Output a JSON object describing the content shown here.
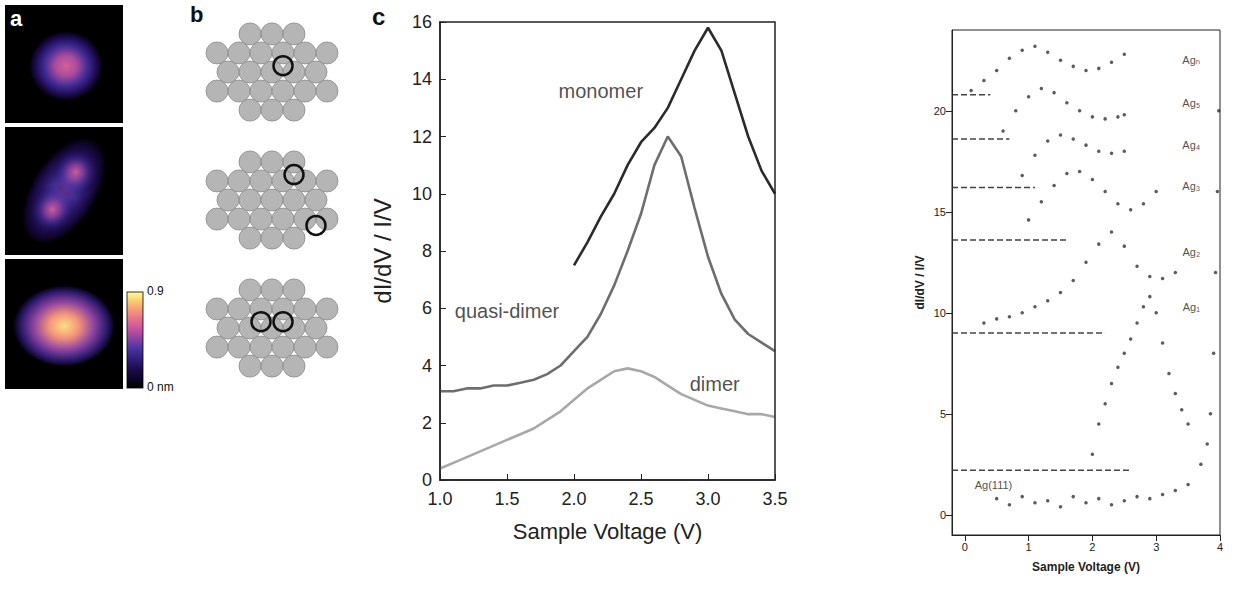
{
  "panel_a": {
    "label": "a",
    "images": [
      {
        "peak_height": 0.6
      },
      {
        "peak_height": 0.58
      },
      {
        "peak_height": 0.85
      }
    ],
    "colorbar": {
      "range": [
        0,
        0.9
      ],
      "ticks": [
        {
          "value": 0.9,
          "label": "0.9"
        },
        {
          "value": 0,
          "label": "0 nm"
        }
      ]
    }
  },
  "panel_b": {
    "label": "b"
  },
  "chart_data": [
    {
      "type": "line",
      "panel_label": "c",
      "x_label": "Sample Voltage (V)",
      "y_label": "dI/dV / I/V",
      "x": [
        1.0,
        1.1,
        1.2,
        1.3,
        1.4,
        1.5,
        1.6,
        1.7,
        1.8,
        1.9,
        2.0,
        2.1,
        2.2,
        2.3,
        2.4,
        2.5,
        2.6,
        2.7,
        2.8,
        2.9,
        3.0,
        3.1,
        3.2,
        3.3,
        3.4,
        3.5
      ],
      "series": [
        {
          "color": "#2b2b2b",
          "line_style": "solid",
          "values": [
            null,
            null,
            null,
            null,
            null,
            null,
            null,
            null,
            null,
            null,
            7.5,
            8.3,
            9.2,
            10.0,
            11.0,
            11.8,
            12.3,
            13.0,
            14.0,
            15.0,
            15.8,
            15.0,
            13.5,
            12.0,
            10.8,
            10.0
          ]
        },
        {
          "color": "#6e6e6e",
          "line_style": "solid",
          "values": [
            3.1,
            3.1,
            3.2,
            3.2,
            3.3,
            3.3,
            3.4,
            3.5,
            3.7,
            4.0,
            4.5,
            5.0,
            5.8,
            6.8,
            8.0,
            9.3,
            11.0,
            12.0,
            11.3,
            9.5,
            7.8,
            6.5,
            5.6,
            5.1,
            4.8,
            4.5
          ]
        },
        {
          "color": "#a8a8a8",
          "line_style": "solid",
          "values": [
            0.4,
            0.6,
            0.8,
            1.0,
            1.2,
            1.4,
            1.6,
            1.8,
            2.1,
            2.4,
            2.8,
            3.2,
            3.5,
            3.8,
            3.9,
            3.8,
            3.6,
            3.3,
            3.0,
            2.8,
            2.6,
            2.5,
            2.4,
            2.3,
            2.3,
            2.2
          ]
        }
      ],
      "annotations": [
        {
          "text": "monomer",
          "x": 2.2,
          "y": 13.6
        },
        {
          "text": "quasi-dimer",
          "x": 1.5,
          "y": 5.9
        },
        {
          "text": "dimer",
          "x": 3.05,
          "y": 3.35
        }
      ],
      "xlim": [
        1.0,
        3.5
      ],
      "xticks": [
        {
          "value": 1.0,
          "label": "1.0"
        },
        {
          "value": 1.5,
          "label": "1.5"
        },
        {
          "value": 2.0,
          "label": "2.0"
        },
        {
          "value": 2.5,
          "label": "2.5"
        },
        {
          "value": 3.0,
          "label": "3.0"
        },
        {
          "value": 3.5,
          "label": "3.5"
        }
      ],
      "ylim": [
        0,
        16
      ],
      "yticks": [
        0,
        2,
        4,
        6,
        8,
        10,
        12,
        14,
        16
      ],
      "grid": false
    },
    {
      "type": "scatter",
      "x_label": "Sample Voltage (V)",
      "y_label": "dI/dV / I/V",
      "series": [
        {
          "color": "#333333",
          "marker": "circle",
          "x": [
            0.5,
            0.7,
            0.9,
            1.1,
            1.3,
            1.5,
            1.7,
            1.9,
            2.1,
            2.3,
            2.5,
            2.7,
            2.9,
            3.1,
            3.3,
            3.5,
            3.7,
            3.8,
            3.85,
            3.9,
            3.93,
            3.96,
            3.98
          ],
          "values": [
            0.8,
            0.5,
            0.9,
            0.6,
            0.7,
            0.4,
            0.9,
            0.6,
            0.8,
            0.5,
            0.7,
            0.9,
            0.8,
            1.0,
            1.2,
            1.5,
            2.5,
            3.5,
            5.0,
            8.0,
            12.0,
            16.0,
            20.0
          ]
        },
        {
          "color": "#333333",
          "marker": "circle",
          "x": [
            2.0,
            2.1,
            2.2,
            2.3,
            2.4,
            2.5,
            2.6,
            2.7,
            2.8,
            2.9,
            3.0,
            3.1,
            3.2,
            3.3,
            3.4,
            3.5
          ],
          "values": [
            3.0,
            4.5,
            5.5,
            6.5,
            7.3,
            8.0,
            8.7,
            9.5,
            10.3,
            10.8,
            10.0,
            8.5,
            7.0,
            6.0,
            5.2,
            4.5
          ]
        },
        {
          "color": "#333333",
          "marker": "circle",
          "x": [
            0.3,
            0.5,
            0.7,
            0.9,
            1.1,
            1.3,
            1.5,
            1.7,
            1.9,
            2.1,
            2.3,
            2.5,
            2.7,
            2.9,
            3.1,
            3.3
          ],
          "values": [
            9.5,
            9.7,
            9.8,
            10.0,
            10.3,
            10.6,
            11.0,
            11.6,
            12.5,
            13.4,
            14.0,
            13.3,
            12.3,
            11.8,
            11.7,
            12.0
          ]
        },
        {
          "color": "#333333",
          "marker": "circle",
          "x": [
            1.0,
            1.2,
            1.4,
            1.6,
            1.8,
            2.0,
            2.2,
            2.4,
            2.6,
            2.8,
            3.0
          ],
          "values": [
            14.6,
            15.5,
            16.3,
            16.9,
            17.0,
            16.6,
            16.0,
            15.4,
            15.1,
            15.4,
            16.0
          ]
        },
        {
          "color": "#333333",
          "marker": "circle",
          "x": [
            0.9,
            1.1,
            1.3,
            1.5,
            1.7,
            1.9,
            2.1,
            2.3,
            2.5
          ],
          "values": [
            16.8,
            17.8,
            18.5,
            18.8,
            18.6,
            18.3,
            18.0,
            17.9,
            18.0
          ]
        },
        {
          "color": "#333333",
          "marker": "circle",
          "x": [
            0.6,
            0.8,
            1.0,
            1.2,
            1.4,
            1.6,
            1.8,
            2.0,
            2.2,
            2.4,
            2.5
          ],
          "values": [
            19.0,
            20.0,
            20.7,
            21.1,
            20.9,
            20.4,
            20.0,
            19.7,
            19.6,
            19.7,
            19.8
          ]
        },
        {
          "color": "#333333",
          "marker": "circle",
          "x": [
            0.1,
            0.3,
            0.5,
            0.7,
            0.9,
            1.1,
            1.3,
            1.5,
            1.7,
            1.9,
            2.1,
            2.3,
            2.5
          ],
          "values": [
            21.0,
            21.5,
            22.0,
            22.6,
            23.0,
            23.2,
            22.9,
            22.5,
            22.2,
            22.0,
            22.1,
            22.4,
            22.8
          ]
        }
      ],
      "reference_lines": [
        {
          "y": 2.2,
          "x": [
            -0.2,
            2.6
          ],
          "line_style": "dashed"
        },
        {
          "y": 9.0,
          "x": [
            -0.2,
            2.2
          ],
          "line_style": "dashed"
        },
        {
          "y": 13.6,
          "x": [
            -0.2,
            1.6
          ],
          "line_style": "dashed"
        },
        {
          "y": 16.2,
          "x": [
            -0.2,
            1.1
          ],
          "line_style": "dashed"
        },
        {
          "y": 18.6,
          "x": [
            -0.2,
            0.7
          ],
          "line_style": "dashed"
        },
        {
          "y": 20.8,
          "x": [
            -0.2,
            0.4
          ],
          "line_style": "dashed"
        }
      ],
      "annotations": [
        {
          "text": "Ag(111)",
          "x": 0.45,
          "y": 1.5
        },
        {
          "text": "Ag₁",
          "x": 3.55,
          "y": 10.3
        },
        {
          "text": "Ag₂",
          "x": 3.55,
          "y": 13.0
        },
        {
          "text": "Ag₃",
          "x": 3.55,
          "y": 16.3
        },
        {
          "text": "Ag₄",
          "x": 3.55,
          "y": 18.3
        },
        {
          "text": "Ag₅",
          "x": 3.55,
          "y": 20.4
        },
        {
          "text": "Agₙ",
          "x": 3.55,
          "y": 22.5
        }
      ],
      "xlim": [
        -0.2,
        4.0
      ],
      "xticks": [
        0,
        1,
        2,
        3,
        4
      ],
      "ylim": [
        -1,
        24
      ],
      "yticks": [
        0,
        5,
        10,
        15,
        20
      ],
      "grid": false
    }
  ]
}
